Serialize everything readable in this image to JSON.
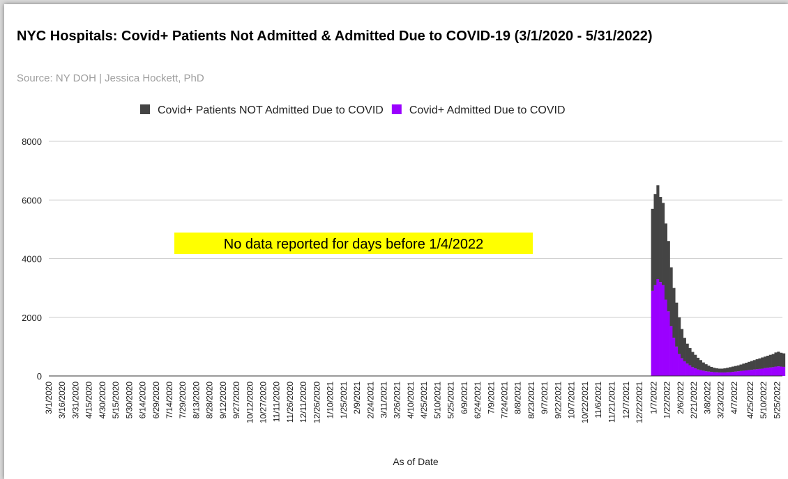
{
  "chart_data": {
    "type": "bar",
    "stacked": true,
    "title": "NYC Hospitals: Covid+ Patients Not Admitted & Admitted Due to COVID-19 (3/1/2020 - 5/31/2022)",
    "subtitle": "Source: NY DOH | Jessica Hockett, PhD",
    "x_label": "As of Date",
    "annotation": "No data reported for days before 1/4/2022",
    "xlim": [
      "3/1/2020",
      "5/31/2022"
    ],
    "xticks": [
      "3/1/2020",
      "3/16/2020",
      "3/31/2020",
      "4/15/2020",
      "4/30/2020",
      "5/15/2020",
      "5/30/2020",
      "6/14/2020",
      "6/29/2020",
      "7/14/2020",
      "7/29/2020",
      "8/13/2020",
      "8/28/2020",
      "9/12/2020",
      "9/27/2020",
      "10/12/2020",
      "10/27/2020",
      "11/11/2020",
      "11/26/2020",
      "12/11/2020",
      "12/26/2020",
      "1/10/2021",
      "1/25/2021",
      "2/9/2021",
      "2/24/2021",
      "3/11/2021",
      "3/26/2021",
      "4/10/2021",
      "4/25/2021",
      "5/10/2021",
      "5/25/2021",
      "6/9/2021",
      "6/24/2021",
      "7/9/2021",
      "7/24/2021",
      "8/8/2021",
      "8/23/2021",
      "9/7/2021",
      "9/22/2021",
      "10/7/2021",
      "10/22/2021",
      "11/6/2021",
      "11/21/2021",
      "12/7/2021",
      "12/22/2021",
      "1/7/2022",
      "1/22/2022",
      "2/6/2022",
      "2/21/2022",
      "3/8/2022",
      "3/23/2022",
      "4/7/2022",
      "4/25/2022",
      "5/10/2022",
      "5/25/2022"
    ],
    "x": [
      "1/4/2022",
      "1/7/2022",
      "1/10/2022",
      "1/13/2022",
      "1/16/2022",
      "1/19/2022",
      "1/22/2022",
      "1/25/2022",
      "1/28/2022",
      "1/31/2022",
      "2/3/2022",
      "2/6/2022",
      "2/9/2022",
      "2/12/2022",
      "2/15/2022",
      "2/18/2022",
      "2/21/2022",
      "2/24/2022",
      "2/27/2022",
      "3/2/2022",
      "3/5/2022",
      "3/8/2022",
      "3/11/2022",
      "3/14/2022",
      "3/17/2022",
      "3/20/2022",
      "3/23/2022",
      "3/26/2022",
      "3/29/2022",
      "4/1/2022",
      "4/4/2022",
      "4/7/2022",
      "4/10/2022",
      "4/13/2022",
      "4/16/2022",
      "4/19/2022",
      "4/22/2022",
      "4/25/2022",
      "4/28/2022",
      "5/1/2022",
      "5/4/2022",
      "5/7/2022",
      "5/10/2022",
      "5/13/2022",
      "5/16/2022",
      "5/19/2022",
      "5/22/2022",
      "5/25/2022",
      "5/28/2022",
      "5/31/2022"
    ],
    "series": [
      {
        "name": "Covid+ Patients NOT Admitted Due to COVID",
        "color": "#444444",
        "values": [
          2800,
          3100,
          3200,
          2900,
          2800,
          2600,
          2400,
          2000,
          1700,
          1500,
          1250,
          1000,
          800,
          680,
          590,
          520,
          460,
          400,
          340,
          280,
          240,
          200,
          170,
          150,
          135,
          130,
          130,
          140,
          155,
          170,
          180,
          190,
          200,
          220,
          240,
          260,
          280,
          300,
          320,
          340,
          360,
          380,
          390,
          410,
          430,
          450,
          480,
          500,
          470,
          460
        ]
      },
      {
        "name": "Covid+ Admitted Due to COVID",
        "color": "#9b00ff",
        "values": [
          2900,
          3100,
          3300,
          3200,
          3100,
          2600,
          2200,
          1700,
          1300,
          1000,
          750,
          600,
          500,
          420,
          360,
          300,
          260,
          220,
          200,
          180,
          160,
          150,
          140,
          130,
          125,
          120,
          120,
          120,
          125,
          130,
          140,
          150,
          160,
          170,
          180,
          190,
          200,
          210,
          220,
          230,
          240,
          250,
          270,
          280,
          290,
          300,
          320,
          330,
          320,
          310
        ]
      }
    ],
    "ylim": [
      0,
      8000
    ],
    "yticks": [
      0,
      2000,
      4000,
      6000,
      8000
    ],
    "grid": true,
    "legend": "top"
  }
}
